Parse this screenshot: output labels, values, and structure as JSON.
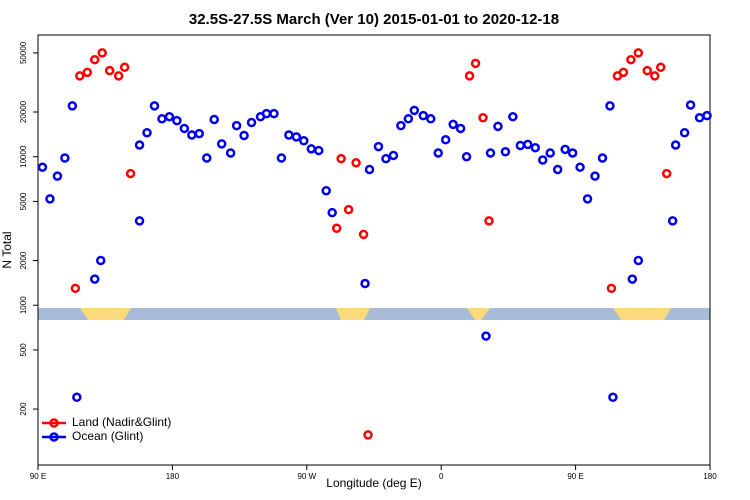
{
  "chart_data": {
    "type": "scatter",
    "title": "32.5S-27.5S March (Ver 10)   2015-01-01 to 2020-12-18",
    "x_label": "Longitude (deg E)",
    "y_label": "N Total",
    "xlim": [
      90,
      540
    ],
    "xticks": [
      {
        "value": 90,
        "label": "90 E"
      },
      180,
      {
        "value": 270,
        "label": "90 W"
      },
      {
        "value": 360,
        "label": "0"
      },
      {
        "value": 450,
        "label": "90 E"
      },
      {
        "value": 540,
        "label": "180"
      }
    ],
    "ylim": [
      84,
      66000
    ],
    "log_y": true,
    "yticks": [
      200,
      500,
      1000,
      2000,
      5000,
      10000,
      20000,
      50000
    ],
    "legend": "bottom-left",
    "series": [
      {
        "name": "Land (Nadir&Glint)",
        "color": "#ff0000",
        "x": [
          115,
          118,
          123,
          128,
          133,
          138,
          144,
          148,
          152,
          290,
          293,
          298,
          303,
          308,
          311,
          379,
          383,
          388,
          392,
          474,
          478,
          482,
          487,
          492,
          498,
          503,
          507,
          511
        ],
        "values": [
          1300,
          35000,
          37000,
          45000,
          50000,
          38000,
          35000,
          40000,
          7700,
          3300,
          9700,
          4400,
          9100,
          3000,
          134,
          35000,
          42500,
          18300,
          3700,
          1300,
          35000,
          37000,
          45000,
          50000,
          38000,
          35000,
          40000,
          7700
        ]
      },
      {
        "name": "Ocean (Glint)",
        "color": "#0000ee",
        "x": [
          93,
          98,
          103,
          108,
          113,
          116,
          128,
          132,
          158,
          158,
          163,
          168,
          173,
          178,
          183,
          188,
          193,
          198,
          203,
          208,
          213,
          219,
          223,
          228,
          233,
          239,
          243,
          248,
          253,
          258,
          263,
          268,
          273,
          278,
          283,
          287,
          309,
          312,
          318,
          323,
          328,
          333,
          338,
          342,
          348,
          353,
          358,
          363,
          368,
          373,
          377,
          390,
          393,
          398,
          403,
          408,
          413,
          418,
          423,
          428,
          433,
          438,
          443,
          448,
          453,
          458,
          463,
          468,
          473,
          475,
          488,
          492,
          515,
          517,
          523,
          527,
          533,
          538
        ],
        "values": [
          8500,
          5200,
          7400,
          9800,
          22000,
          240,
          1500,
          2000,
          3700,
          12000,
          14500,
          22000,
          18000,
          18600,
          17500,
          15500,
          14000,
          14300,
          9800,
          17800,
          12200,
          10600,
          16200,
          13900,
          17000,
          18600,
          19500,
          19500,
          9800,
          14000,
          13600,
          12800,
          11300,
          11000,
          5900,
          4200,
          1400,
          8200,
          11700,
          9700,
          10200,
          16200,
          18000,
          20500,
          18900,
          18000,
          10600,
          13000,
          16500,
          15500,
          10000,
          620,
          10600,
          16000,
          10800,
          18600,
          11900,
          12100,
          11500,
          9500,
          10600,
          8200,
          11200,
          10600,
          8500,
          5200,
          7400,
          9800,
          22000,
          240,
          1500,
          2000,
          3700,
          12000,
          14500,
          22300,
          18300,
          18900
        ]
      }
    ]
  }
}
